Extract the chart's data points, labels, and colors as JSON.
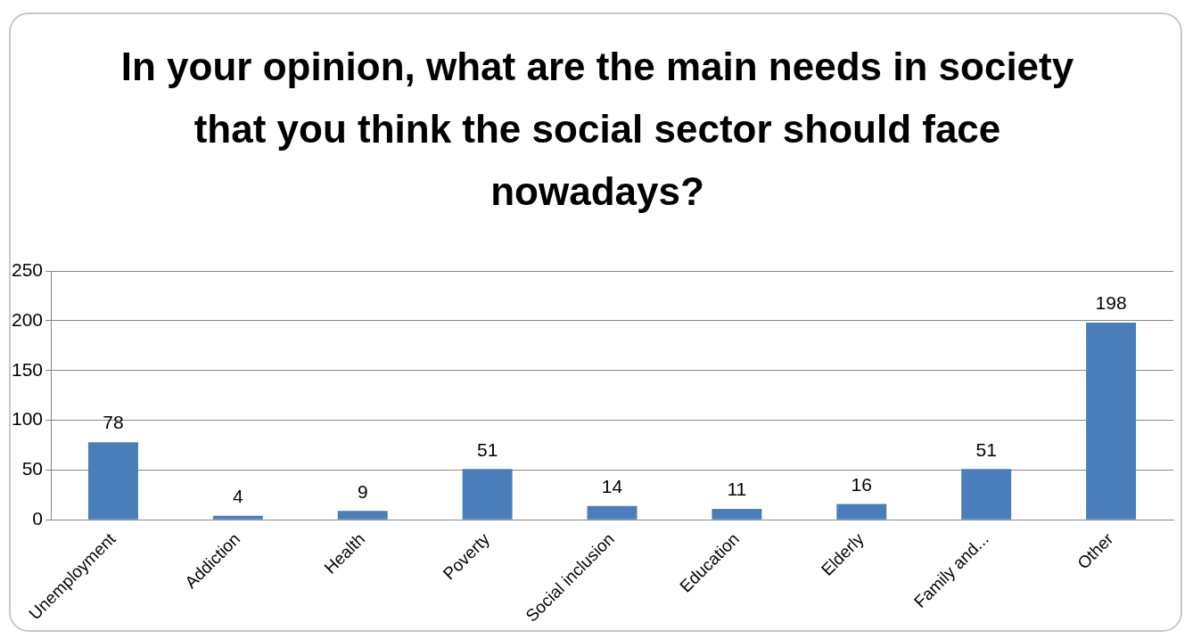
{
  "chart_data": {
    "type": "bar",
    "title": "In your opinion, what are the main needs in society that you think the social sector should face nowadays?",
    "categories": [
      "Unemployment",
      "Addiction",
      "Health",
      "Poverty",
      "Social inclusion",
      "Education",
      "Elderly",
      "Family and...",
      "Other"
    ],
    "values": [
      78,
      4,
      9,
      51,
      14,
      11,
      16,
      51,
      198
    ],
    "color": "#4a7ebb",
    "ylim": [
      0,
      250
    ],
    "yticks": [
      0,
      50,
      100,
      150,
      200,
      250
    ],
    "grid": "y",
    "data_labels": true,
    "legend": false
  }
}
